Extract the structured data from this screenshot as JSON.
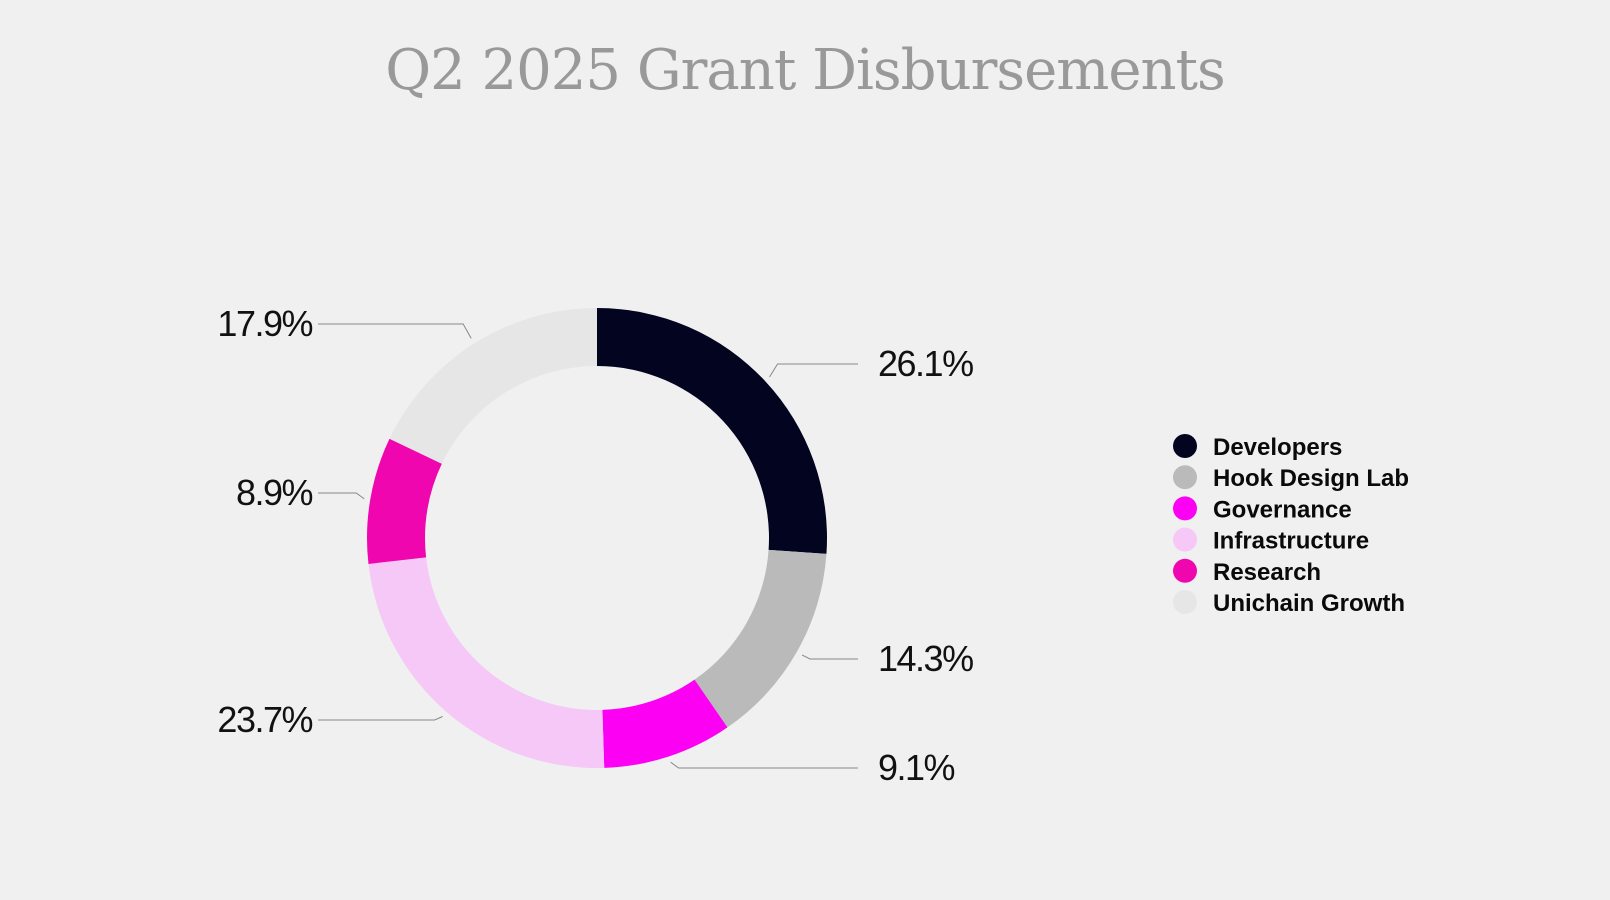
{
  "chart_data": {
    "type": "pie",
    "variant": "donut",
    "title": "Q2 2025 Grant Disbursements",
    "categories": [
      "Developers",
      "Hook Design Lab",
      "Governance",
      "Infrastructure",
      "Research",
      "Unichain Growth"
    ],
    "values": [
      26.1,
      14.3,
      9.1,
      23.7,
      8.9,
      17.9
    ],
    "labels": [
      "26.1%",
      "14.3%",
      "9.1%",
      "23.7%",
      "8.9%",
      "17.9%"
    ],
    "colors": [
      "#020420",
      "#bababa",
      "#fc00f4",
      "#f5c8f7",
      "#f006ae",
      "#e6e6e6"
    ],
    "legend_position": "right",
    "start_angle": "top, clockwise"
  }
}
